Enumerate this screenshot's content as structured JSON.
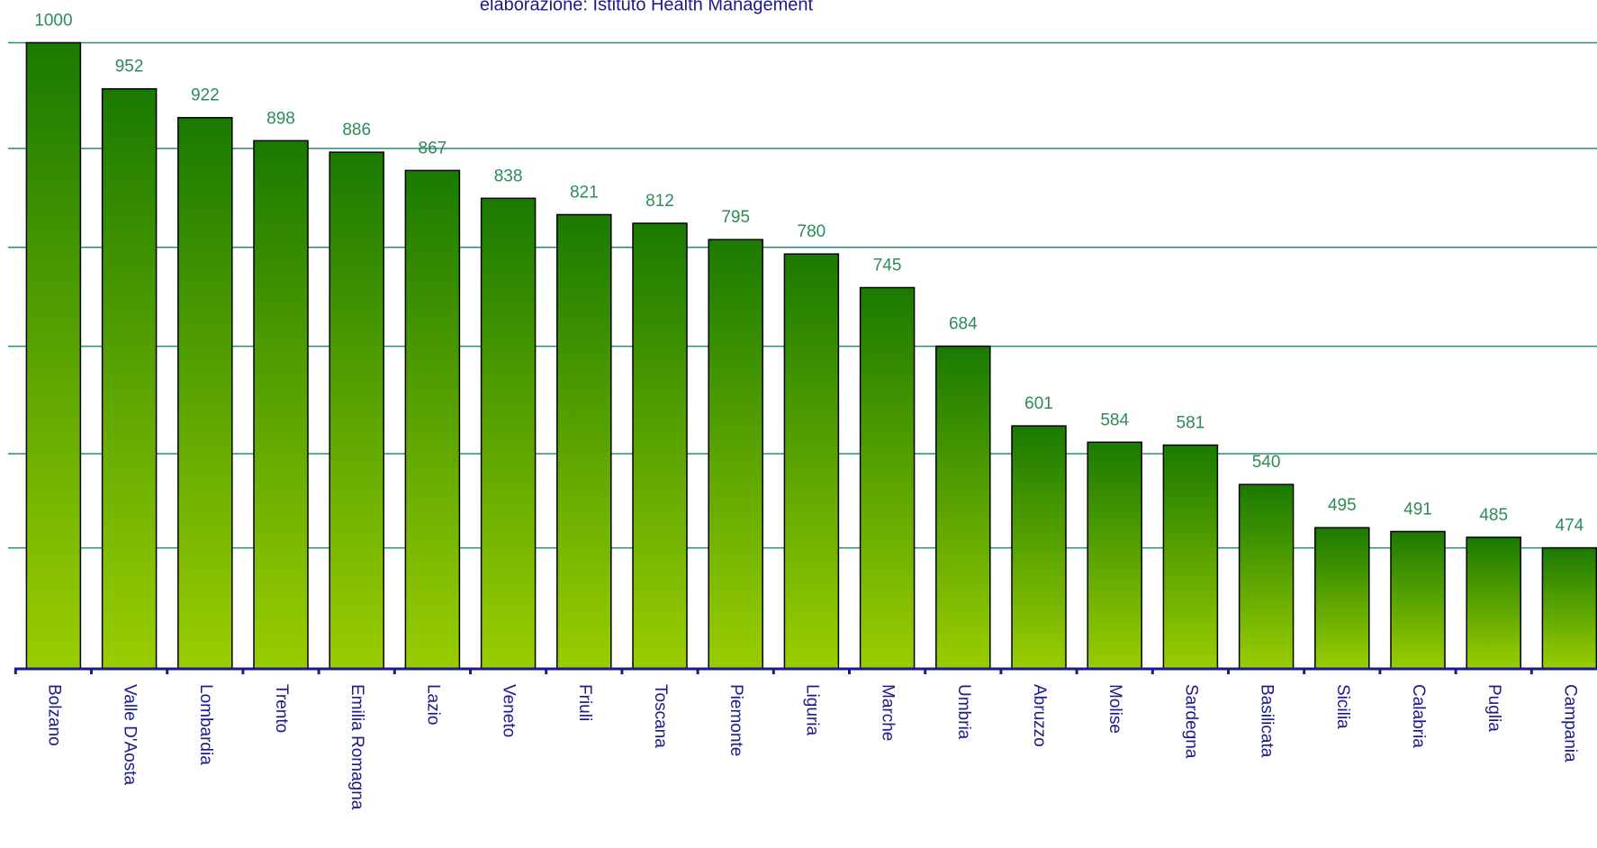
{
  "chart_data": {
    "type": "bar",
    "subtitle": "elaborazione: Istituto Health Management",
    "categories": [
      "Bolzano",
      "Valle D'Aosta",
      "Lombardia",
      "Trento",
      "Emilia Romagna",
      "Lazio",
      "Veneto",
      "Friuli",
      "Toscana",
      "Piemonte",
      "Liguria",
      "Marche",
      "Umbria",
      "Abruzzo",
      "Molise",
      "Sardegna",
      "Basilicata",
      "Sicilia",
      "Calabria",
      "Puglia",
      "Campania"
    ],
    "values": [
      1000,
      952,
      922,
      898,
      886,
      867,
      838,
      821,
      812,
      795,
      780,
      745,
      684,
      601,
      584,
      581,
      540,
      495,
      491,
      485,
      474
    ],
    "color": "#1a7a00",
    "gradient_end": "#9acd00",
    "ylim": [
      348,
      1000
    ],
    "yticks": [
      474,
      572,
      684,
      787,
      890,
      1000
    ],
    "grid": true
  }
}
